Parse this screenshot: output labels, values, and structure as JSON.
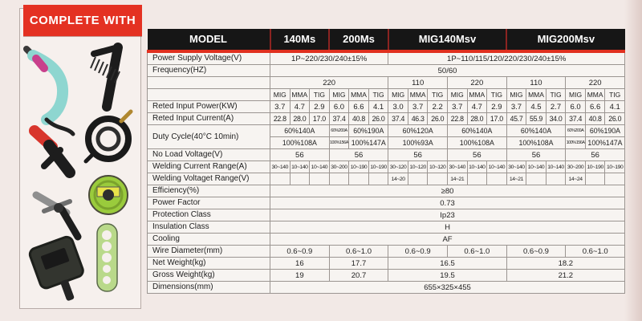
{
  "badge": {
    "label": "COMPLETE WITH"
  },
  "colors": {
    "accent_red": "#e43122",
    "header_black": "#161616",
    "separator_red": "#8c2421",
    "table_bg": "#f7f4f1"
  },
  "accessories": [
    "mig-torch",
    "wire-brush",
    "electrode-holder",
    "cable-coil",
    "wire-spool",
    "earth-clamp",
    "spool-flange",
    "face-shield"
  ],
  "table": {
    "header": {
      "model_label": "MODEL",
      "models": [
        {
          "label": "140Ms",
          "s": 3
        },
        {
          "label": "200Ms",
          "s": 3
        },
        {
          "label": "MIG140Msv",
          "s": 6
        },
        {
          "label": "MIG200Msv",
          "s": 6
        }
      ]
    },
    "rows": [
      {
        "label": "Power Supply Voltage(V)",
        "cells": [
          {
            "t": "1P~220/230/240±15%",
            "s": 6
          },
          {
            "t": "1P~110/115/120/220/230/240±15%",
            "s": 12
          }
        ]
      },
      {
        "label": "Frequency(HZ)",
        "cells": [
          {
            "t": "50/60",
            "s": 18
          }
        ]
      },
      {
        "label": "",
        "cells": [
          {
            "t": "220",
            "s": 6
          },
          {
            "t": "110",
            "s": 3
          },
          {
            "t": "220",
            "s": 3
          },
          {
            "t": "110",
            "s": 3
          },
          {
            "t": "220",
            "s": 3
          }
        ]
      },
      {
        "label": "",
        "cls": "sm",
        "cells": [
          "MIG",
          "MMA",
          "TIG",
          "MIG",
          "MMA",
          "TIG",
          "MIG",
          "MMA",
          "TIG",
          "MIG",
          "MMA",
          "TIG",
          "MIG",
          "MMA",
          "TIG",
          "MIG",
          "MMA",
          "TIG"
        ]
      },
      {
        "label": "Reted Input Power(KW)",
        "cells": [
          "3.7",
          "4.7",
          "2.9",
          "6.0",
          "6.6",
          "4.1",
          "3.0",
          "3.7",
          "2.2",
          "3.7",
          "4.7",
          "2.9",
          "3.7",
          "4.5",
          "2.7",
          "6.0",
          "6.6",
          "4.1"
        ]
      },
      {
        "label": "Reted Input Current(A)",
        "cls": "md",
        "cells": [
          "22.8",
          "28.0",
          "17.0",
          "37.4",
          "40.8",
          "26.0",
          "37.4",
          "46.3",
          "26.0",
          "22.8",
          "28.0",
          "17.0",
          "45.7",
          "55.9",
          "34.0",
          "37.4",
          "40.8",
          "26.0"
        ]
      },
      {
        "label": "Duty Cycle(40°C 10min)",
        "rowspan": 2,
        "cls": "dc",
        "cells": [
          {
            "t": "60%140A",
            "s": 3
          },
          {
            "t": "60%200A",
            "s": 1,
            "c": "tn"
          },
          {
            "t": "60%190A",
            "s": 2
          },
          {
            "t": "60%120A",
            "s": 3
          },
          {
            "t": "60%140A",
            "s": 3
          },
          {
            "t": "60%140A",
            "s": 3
          },
          {
            "t": "60%200A",
            "s": 1,
            "c": "tn"
          },
          {
            "t": "60%190A",
            "s": 2
          }
        ]
      },
      {
        "label": null,
        "cls": "dc",
        "cells": [
          {
            "t": "100%108A",
            "s": 3
          },
          {
            "t": "100%156A",
            "s": 1,
            "c": "tn"
          },
          {
            "t": "100%147A",
            "s": 2
          },
          {
            "t": "100%93A",
            "s": 3
          },
          {
            "t": "100%108A",
            "s": 3
          },
          {
            "t": "100%108A",
            "s": 3
          },
          {
            "t": "100%156A",
            "s": 1,
            "c": "tn"
          },
          {
            "t": "100%147A",
            "s": 2
          }
        ]
      },
      {
        "label": "No Load Voltage(V)",
        "cells": [
          {
            "t": "56",
            "s": 3
          },
          {
            "t": "56",
            "s": 3
          },
          {
            "t": "56",
            "s": 3
          },
          {
            "t": "56",
            "s": 3
          },
          {
            "t": "56",
            "s": 3
          },
          {
            "t": "56",
            "s": 3
          }
        ]
      },
      {
        "label": "Welding Current Range(A)",
        "cls": "rg",
        "cells": [
          "30~140",
          "10~140",
          "10~140",
          "30~200",
          "10~190",
          "10~190",
          "30~120",
          "10~120",
          "10~120",
          "30~140",
          "10~140",
          "10~140",
          "30~140",
          "10~140",
          "10~140",
          "30~200",
          "10~190",
          "10~190"
        ]
      },
      {
        "label": "Welding Voltaget Range(V)",
        "cls": "rg",
        "cells": [
          "",
          "",
          "",
          "",
          "",
          "",
          "14~20",
          "",
          "",
          "14~21",
          "",
          "",
          "14~21",
          "",
          "",
          "14~24",
          "",
          ""
        ]
      },
      {
        "label": "Efficiency(%)",
        "cells": [
          {
            "t": "≥80",
            "s": 18
          }
        ]
      },
      {
        "label": "Power Factor",
        "cells": [
          {
            "t": "0.73",
            "s": 18
          }
        ]
      },
      {
        "label": "Protection Class",
        "cells": [
          {
            "t": "Ip23",
            "s": 18
          }
        ]
      },
      {
        "label": "Insulation Class",
        "cells": [
          {
            "t": "H",
            "s": 18
          }
        ]
      },
      {
        "label": "Cooling",
        "cells": [
          {
            "t": "AF",
            "s": 18
          }
        ]
      },
      {
        "label": "Wire Diameter(mm)",
        "cells": [
          {
            "t": "0.6~0.9",
            "s": 3
          },
          {
            "t": "0.6~1.0",
            "s": 3
          },
          {
            "t": "0.6~0.9",
            "s": 3
          },
          {
            "t": "0.6~1.0",
            "s": 3
          },
          {
            "t": "0.6~0.9",
            "s": 3
          },
          {
            "t": "0.6~1.0",
            "s": 3
          }
        ]
      },
      {
        "label": "Net Weight(kg)",
        "cells": [
          {
            "t": "16",
            "s": 3
          },
          {
            "t": "17.7",
            "s": 3
          },
          {
            "t": "16.5",
            "s": 6
          },
          {
            "t": "18.2",
            "s": 6
          }
        ]
      },
      {
        "label": "Gross Weight(kg)",
        "cells": [
          {
            "t": "19",
            "s": 3
          },
          {
            "t": "20.7",
            "s": 3
          },
          {
            "t": "19.5",
            "s": 6
          },
          {
            "t": "21.2",
            "s": 6
          }
        ]
      },
      {
        "label": "Dimensions(mm)",
        "cells": [
          {
            "t": "655×325×455",
            "s": 18
          }
        ]
      }
    ]
  }
}
